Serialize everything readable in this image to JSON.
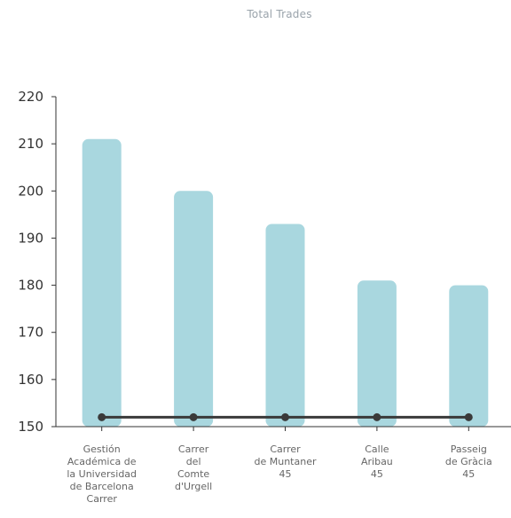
{
  "chart_data": {
    "type": "bar",
    "title": "Total Trades",
    "categories": [
      "Gestión Académica de la Universidad de Barcelona Carrer",
      "Carrer del Comte d'Urgell",
      "Carrer de Muntaner 45",
      "Calle Aribau 45",
      "Passeig de Gràcia 45"
    ],
    "category_label_lines": [
      [
        "Gestión",
        "Académica de",
        "la Universidad",
        "de Barcelona",
        "Carrer"
      ],
      [
        "Carrer",
        "del",
        "Comte",
        "d'Urgell"
      ],
      [
        "Carrer",
        "de Muntaner",
        "45"
      ],
      [
        "Calle",
        "Aribau",
        "45"
      ],
      [
        "Passeig",
        "de Gràcia",
        "45"
      ]
    ],
    "values": [
      211,
      200,
      193,
      181,
      180
    ],
    "line_values": [
      152,
      152,
      152,
      152,
      152
    ],
    "ylim": [
      150,
      220
    ],
    "yticks": [
      150,
      160,
      170,
      180,
      190,
      200,
      210,
      220
    ],
    "xlabel": "",
    "ylabel": "",
    "grid": false,
    "colors": {
      "bar": "#a9d7df",
      "line": "#3a3a3a",
      "axis": "#333333"
    }
  }
}
